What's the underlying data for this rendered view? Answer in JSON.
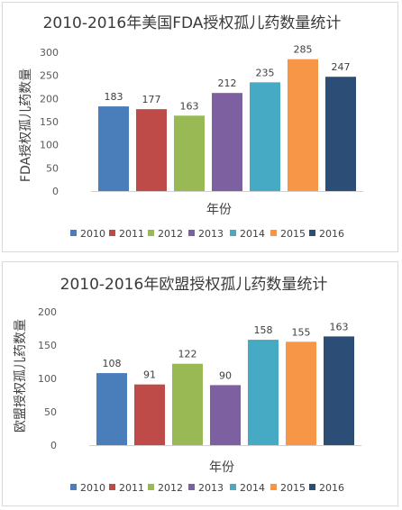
{
  "chart_data": [
    {
      "type": "bar",
      "title": "2010-2016年美国FDA授权孤儿药数量统计",
      "xlabel": "年份",
      "ylabel": "FDA授权孤儿药数量",
      "categories": [
        "2010",
        "2011",
        "2012",
        "2013",
        "2014",
        "2015",
        "2016"
      ],
      "values": [
        183,
        177,
        163,
        212,
        235,
        285,
        247
      ],
      "ylim": [
        0,
        300
      ],
      "yticks": [
        0,
        50,
        100,
        150,
        200,
        250,
        300
      ],
      "grid": false,
      "legend": "bottom",
      "colors": [
        "#4a7ebb",
        "#be4b48",
        "#98b954",
        "#7d60a0",
        "#46aac4",
        "#f79646",
        "#2c4d75"
      ]
    },
    {
      "type": "bar",
      "title": "2010-2016年欧盟授权孤儿药数量统计",
      "xlabel": "年份",
      "ylabel": "欧盟授权孤儿药数量",
      "categories": [
        "2010",
        "2011",
        "2012",
        "2013",
        "2014",
        "2015",
        "2016"
      ],
      "values": [
        108,
        91,
        122,
        90,
        158,
        155,
        163
      ],
      "ylim": [
        0,
        200
      ],
      "yticks": [
        0,
        50,
        100,
        150,
        200
      ],
      "grid": false,
      "legend": "bottom",
      "colors": [
        "#4a7ebb",
        "#be4b48",
        "#98b954",
        "#7d60a0",
        "#46aac4",
        "#f79646",
        "#2c4d75"
      ]
    }
  ]
}
